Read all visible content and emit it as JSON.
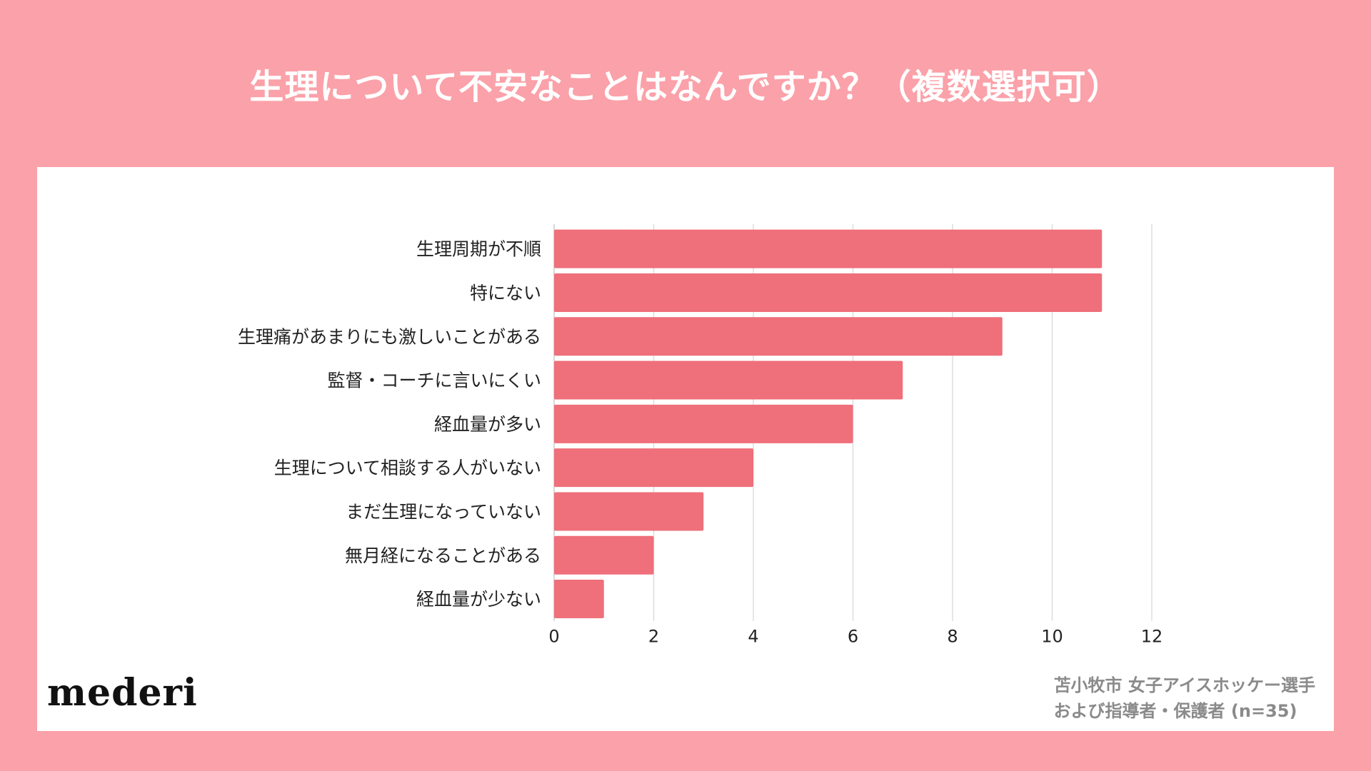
{
  "title": "生理について不安なことはなんですか？（複数選択可）",
  "brand": "mederi",
  "source": {
    "line1": "苫小牧市 女子アイスホッケー選手",
    "line2": "および指導者・保護者 (n=35)"
  },
  "colors": {
    "background": "#FBA1A9",
    "panel": "#ffffff",
    "bar": "#EF6F7A",
    "grid": "#dddddd"
  },
  "chart_data": {
    "type": "bar",
    "orientation": "horizontal",
    "title": "生理について不安なことはなんですか？（複数選択可）",
    "categories": [
      "生理周期が不順",
      "特にない",
      "生理痛があまりにも激しいことがある",
      "監督・コーチに言いにくい",
      "経血量が多い",
      "生理について相談する人がいない",
      "まだ生理になっていない",
      "無月経になることがある",
      "経血量が少ない"
    ],
    "values": [
      11,
      11,
      9,
      7,
      6,
      4,
      3,
      2,
      1
    ],
    "xlim": [
      0,
      12
    ],
    "xticks": [
      0,
      2,
      4,
      6,
      8,
      10,
      12
    ],
    "xlabel": "",
    "ylabel": "",
    "grid": true
  }
}
